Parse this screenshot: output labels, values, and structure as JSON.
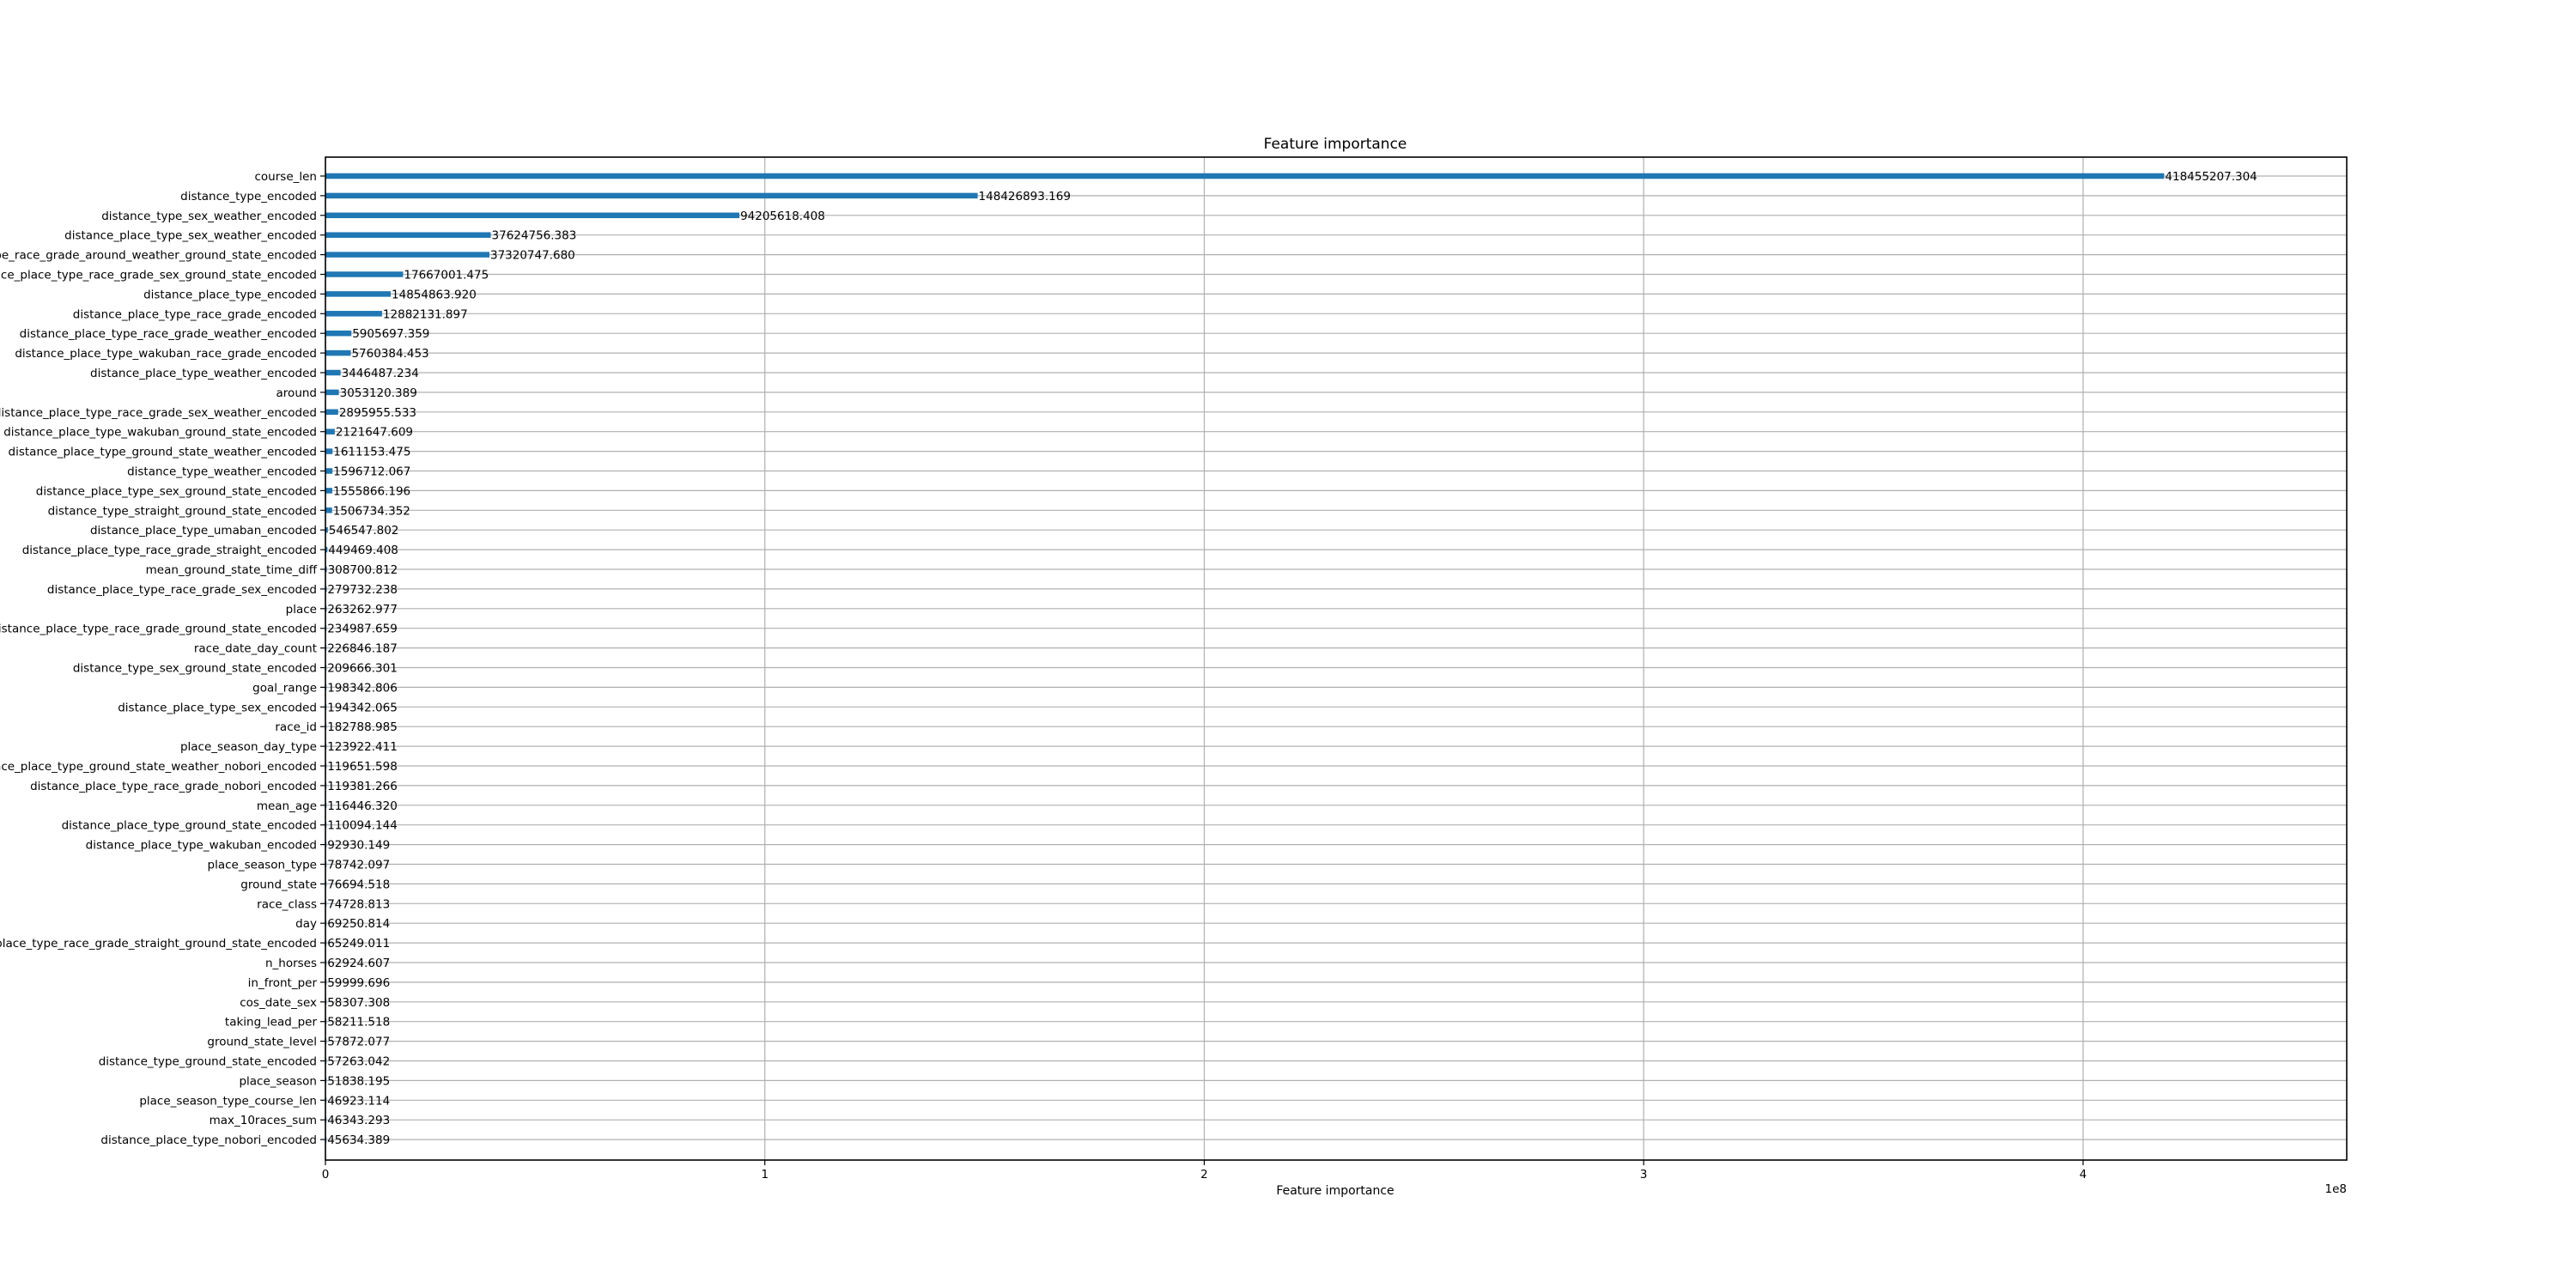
{
  "colors": {
    "bar": "#1f77b4",
    "grid": "#b0b0b0",
    "axis": "#000000",
    "background": "#ffffff"
  },
  "chart_data": {
    "type": "bar",
    "orientation": "horizontal",
    "title": "Feature importance",
    "xlabel": "Feature importance",
    "ylabel": "",
    "x_offset_text": "1e8",
    "xlim": [
      0,
      460000000
    ],
    "xticks": [
      0,
      100000000,
      200000000,
      300000000,
      400000000
    ],
    "xtick_labels": [
      "0",
      "1",
      "2",
      "3",
      "4"
    ],
    "grid": true,
    "legend": false,
    "categories": [
      "course_len",
      "distance_type_encoded",
      "distance_type_sex_weather_encoded",
      "distance_place_type_sex_weather_encoded",
      "distance_place_type_race_grade_around_weather_ground_state_encoded",
      "distance_place_type_race_grade_sex_ground_state_encoded",
      "distance_place_type_encoded",
      "distance_place_type_race_grade_encoded",
      "distance_place_type_race_grade_weather_encoded",
      "distance_place_type_wakuban_race_grade_encoded",
      "distance_place_type_weather_encoded",
      "around",
      "distance_place_type_race_grade_sex_weather_encoded",
      "distance_place_type_wakuban_ground_state_encoded",
      "distance_place_type_ground_state_weather_encoded",
      "distance_type_weather_encoded",
      "distance_place_type_sex_ground_state_encoded",
      "distance_type_straight_ground_state_encoded",
      "distance_place_type_umaban_encoded",
      "distance_place_type_race_grade_straight_encoded",
      "mean_ground_state_time_diff",
      "distance_place_type_race_grade_sex_encoded",
      "place",
      "distance_place_type_race_grade_ground_state_encoded",
      "race_date_day_count",
      "distance_type_sex_ground_state_encoded",
      "goal_range",
      "distance_place_type_sex_encoded",
      "race_id",
      "place_season_day_type",
      "distance_place_type_ground_state_weather_nobori_encoded",
      "distance_place_type_race_grade_nobori_encoded",
      "mean_age",
      "distance_place_type_ground_state_encoded",
      "distance_place_type_wakuban_encoded",
      "place_season_type",
      "ground_state",
      "race_class",
      "day",
      "distance_place_type_race_grade_straight_ground_state_encoded",
      "n_horses",
      "in_front_per",
      "cos_date_sex",
      "taking_lead_per",
      "ground_state_level",
      "distance_type_ground_state_encoded",
      "place_season",
      "place_season_type_course_len",
      "max_10races_sum",
      "distance_place_type_nobori_encoded"
    ],
    "values": [
      418455207.304,
      148426893.169,
      94205618.408,
      37624756.383,
      37320747.68,
      17667001.475,
      14854863.92,
      12882131.897,
      5905697.359,
      5760384.453,
      3446487.234,
      3053120.389,
      2895955.533,
      2121647.609,
      1611153.475,
      1596712.067,
      1555866.196,
      1506734.352,
      546547.802,
      449469.408,
      308700.812,
      279732.238,
      263262.977,
      234987.659,
      226846.187,
      209666.301,
      198342.806,
      194342.065,
      182788.985,
      123922.411,
      119651.598,
      119381.266,
      116446.32,
      110094.144,
      92930.149,
      78742.097,
      76694.518,
      74728.813,
      69250.814,
      65249.011,
      62924.607,
      59999.696,
      58307.308,
      58211.518,
      57872.077,
      57263.042,
      51838.195,
      46923.114,
      46343.293,
      45634.389
    ],
    "value_labels": [
      "418455207.304",
      "148426893.169",
      "94205618.408",
      "37624756.383",
      "37320747.680",
      "17667001.475",
      "14854863.920",
      "12882131.897",
      "5905697.359",
      "5760384.453",
      "3446487.234",
      "3053120.389",
      "2895955.533",
      "2121647.609",
      "1611153.475",
      "1596712.067",
      "1555866.196",
      "1506734.352",
      "546547.802",
      "449469.408",
      "308700.812",
      "279732.238",
      "263262.977",
      "234987.659",
      "226846.187",
      "209666.301",
      "198342.806",
      "194342.065",
      "182788.985",
      "123922.411",
      "119651.598",
      "119381.266",
      "116446.320",
      "110094.144",
      "92930.149",
      "78742.097",
      "76694.518",
      "74728.813",
      "69250.814",
      "65249.011",
      "62924.607",
      "59999.696",
      "58307.308",
      "58211.518",
      "57872.077",
      "57263.042",
      "51838.195",
      "46923.114",
      "46343.293",
      "45634.389"
    ]
  }
}
